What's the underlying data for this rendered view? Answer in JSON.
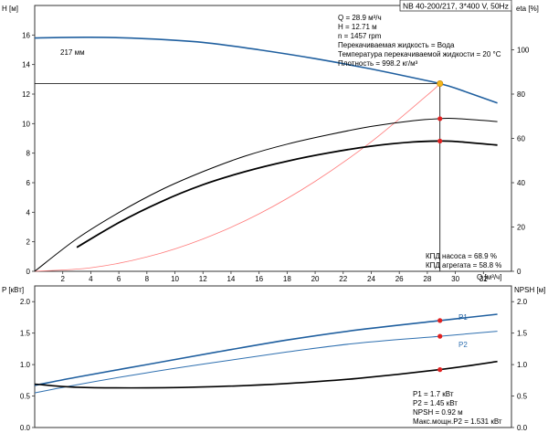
{
  "title": "NB 40-200/217, 3*400 V, 50Hz",
  "colors": {
    "head_curve": "#1f5f9f",
    "p1_curve": "#1f5f9f",
    "p2_curve": "#2f70b0",
    "system_curve": "#ff7a7a",
    "duty_point_marker": "#f2b61e",
    "efficiency_marker": "#e02020",
    "grid": "#cccccc"
  },
  "info_block": [
    "Q = 28.9 м³/ч",
    "H = 12.71 м",
    "n = 1457 rpm",
    "Перекачиваемая жидкость = Вода",
    "Температура перекачиваемой жидкости = 20 °C",
    "Плотность = 998.2 кг/м³"
  ],
  "efficiency_block": [
    "КПД насоса = 68.9 %",
    "КПД агрегата = 58.8 %"
  ],
  "power_block": [
    "P1 = 1.7 кВт",
    "P2 = 1.45 кВт",
    "NPSH = 0.92 м",
    "Макс.мощн.P2 = 1.531 кВт"
  ],
  "chart_data": [
    {
      "type": "line",
      "panel": "head-efficiency",
      "xlabel": "Q [м³/ч]",
      "ylabel_left": "H [м]",
      "ylabel_right": "eta [%]",
      "xlim": [
        0,
        34
      ],
      "ylim_left": [
        0,
        18
      ],
      "ylim_right": [
        0,
        120
      ],
      "x_ticks": [
        "2",
        "4",
        "6",
        "8",
        "10",
        "12",
        "14",
        "16",
        "18",
        "20",
        "22",
        "24",
        "26",
        "28",
        "30",
        "32"
      ],
      "y_ticks_left": [
        "0",
        "2",
        "4",
        "6",
        "8",
        "10",
        "12",
        "14",
        "16"
      ],
      "y_ticks_right": [
        "0",
        "20",
        "40",
        "60",
        "80",
        "100"
      ],
      "grid": false,
      "impeller_label": "217 мм",
      "duty_point": {
        "x": 28.9,
        "y": 12.71
      },
      "series": [
        {
          "key": "head",
          "axis": "left",
          "x": [
            0,
            4,
            8,
            12,
            16,
            20,
            24,
            28,
            28.9,
            30,
            33
          ],
          "y": [
            15.8,
            15.85,
            15.75,
            15.5,
            15.0,
            14.4,
            13.7,
            12.9,
            12.71,
            12.4,
            11.4
          ]
        },
        {
          "key": "system",
          "axis": "left",
          "x": [
            0,
            4,
            8,
            12,
            16,
            20,
            24,
            28,
            28.9
          ],
          "y": [
            0,
            0.24,
            0.97,
            2.19,
            3.89,
            6.09,
            8.77,
            11.93,
            12.71
          ]
        },
        {
          "key": "eta_pump",
          "axis": "right",
          "x": [
            0,
            3,
            6,
            9,
            12,
            15,
            18,
            21,
            24,
            27,
            28.9,
            30,
            33
          ],
          "y": [
            0,
            14.7,
            26.5,
            36.7,
            45.0,
            52.0,
            57.4,
            61.7,
            65.4,
            68.0,
            68.9,
            69.0,
            67.6
          ]
        },
        {
          "key": "eta_unit",
          "axis": "right",
          "x": [
            3,
            6,
            9,
            12,
            15,
            18,
            21,
            24,
            27,
            28.9,
            30,
            33
          ],
          "y": [
            10.8,
            22.0,
            31.4,
            39.1,
            45.0,
            49.7,
            53.5,
            56.5,
            58.4,
            58.8,
            58.6,
            57.0
          ]
        }
      ],
      "markers": [
        {
          "series": "eta_pump",
          "x": 28.9,
          "y": 68.9
        },
        {
          "series": "eta_unit",
          "x": 28.9,
          "y": 58.8
        }
      ]
    },
    {
      "type": "line",
      "panel": "power-npsh",
      "ylabel_left": "P [кВт]",
      "ylabel_right": "NPSH [м]",
      "xlim": [
        0,
        34
      ],
      "ylim": [
        0,
        2.25
      ],
      "y_ticks_left": [
        "0.0",
        "0.5",
        "1.0",
        "1.5",
        "2.0"
      ],
      "y_ticks_right": [
        "0.0",
        "0.5",
        "1.0",
        "1.5",
        "2.0"
      ],
      "series": [
        {
          "key": "P1",
          "name": "P1",
          "x": [
            0,
            3,
            8,
            13,
            18,
            23,
            28.9,
            33
          ],
          "y": [
            0.67,
            0.8,
            1.0,
            1.2,
            1.39,
            1.55,
            1.7,
            1.8
          ]
        },
        {
          "key": "P2",
          "name": "P2",
          "x": [
            0,
            3,
            8,
            13,
            18,
            23,
            28.9,
            33
          ],
          "y": [
            0.55,
            0.68,
            0.87,
            1.04,
            1.2,
            1.34,
            1.45,
            1.53
          ]
        },
        {
          "key": "NPSH",
          "x": [
            0,
            3,
            8,
            13,
            18,
            23,
            28.9,
            33
          ],
          "y": [
            0.69,
            0.64,
            0.63,
            0.65,
            0.7,
            0.78,
            0.92,
            1.05
          ]
        }
      ],
      "markers": [
        {
          "series": "P1",
          "x": 28.9,
          "y": 1.7
        },
        {
          "series": "P2",
          "x": 28.9,
          "y": 1.45
        },
        {
          "series": "NPSH",
          "x": 28.9,
          "y": 0.92
        }
      ]
    }
  ]
}
